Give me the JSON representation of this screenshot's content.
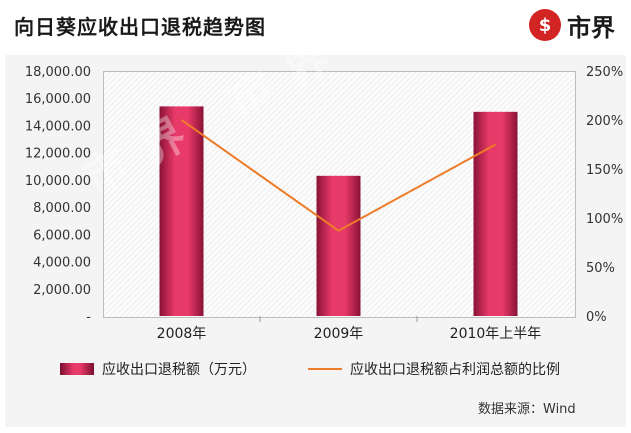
{
  "header": {
    "title": "向日葵应收出口退税趋势图",
    "brand_icon_glyph": "$",
    "brand_name": "市界"
  },
  "chart_data": {
    "type": "bar",
    "categories": [
      "2008年",
      "2009年",
      "2010年上半年"
    ],
    "series": [
      {
        "name": "应收出口退税额（万元）",
        "type": "bar",
        "axis": "left",
        "values": [
          15400,
          10300,
          15000
        ],
        "color": "#e83a68"
      },
      {
        "name": "应收出口退税额占利润总额的比例",
        "type": "line",
        "axis": "right",
        "values": [
          200,
          87,
          175
        ],
        "color": "#ee7b2a"
      }
    ],
    "y_left": {
      "ylim": [
        0,
        18000
      ],
      "ticks": [
        "-",
        "2,000.00",
        "4,000.00",
        "6,000.00",
        "8,000.00",
        "10,000.00",
        "12,000.00",
        "14,000.00",
        "16,000.00",
        "18,000.00"
      ]
    },
    "y_right": {
      "ylim": [
        0,
        250
      ],
      "ticks": [
        "0%",
        "50%",
        "100%",
        "150%",
        "200%",
        "250%"
      ]
    },
    "grid": false,
    "legend_position": "bottom"
  },
  "watermark": "市界 市界 市界",
  "source": "数据来源：Wind"
}
